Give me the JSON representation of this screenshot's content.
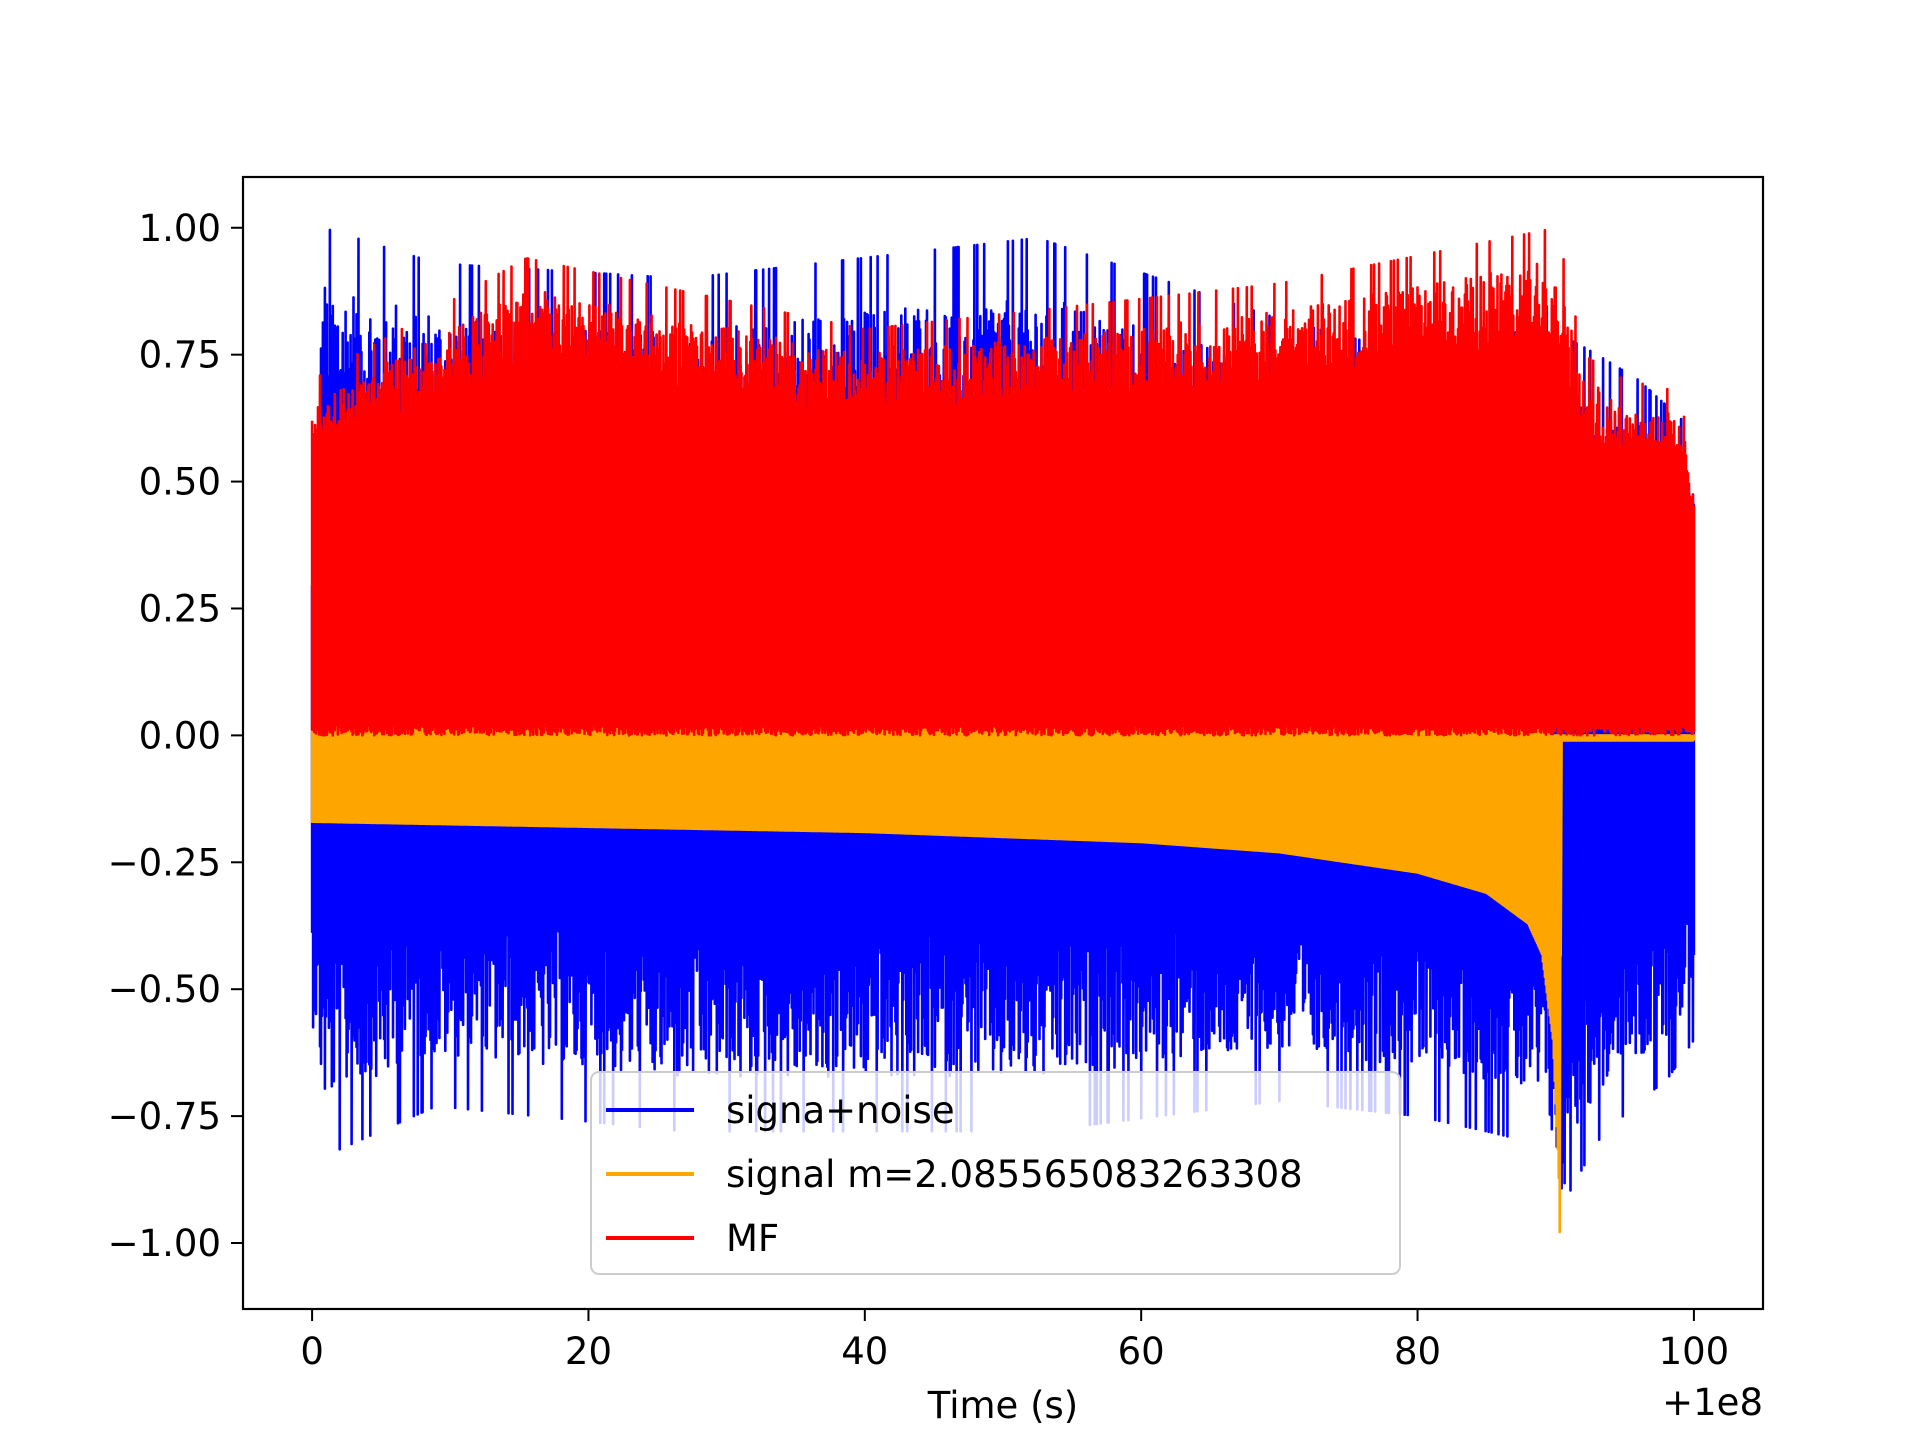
{
  "chart_data": {
    "type": "line",
    "title": "",
    "xlabel": "Time (s)",
    "ylabel": "",
    "x_offset_label": "+1e8",
    "xlim": [
      -5,
      105
    ],
    "ylim": [
      -1.13,
      1.1
    ],
    "x_ticks": [
      0,
      20,
      40,
      60,
      80,
      100
    ],
    "x_tick_labels": [
      "0",
      "20",
      "40",
      "60",
      "80",
      "100"
    ],
    "y_ticks": [
      1.0,
      0.75,
      0.5,
      0.25,
      0.0,
      -0.25,
      -0.5,
      -0.75,
      -1.0
    ],
    "y_tick_labels": [
      "1.00",
      "0.75",
      "0.50",
      "0.25",
      "0.00",
      "−0.25",
      "−0.50",
      "−0.75",
      "−1.00"
    ],
    "grid": false,
    "legend_position": "lower-center",
    "signal_merger_time": 90.3,
    "series": [
      {
        "name": "signa+noise",
        "color": "#0000ff",
        "envelope": {
          "x": [
            0,
            0.8,
            9,
            27,
            52.5,
            70,
            80,
            85,
            88,
            89.5,
            90.3,
            90.5,
            91,
            93,
            96,
            98,
            100
          ],
          "upper": [
            0.4,
            1.0,
            0.93,
            0.9,
            0.98,
            0.82,
            0.75,
            0.78,
            0.8,
            0.85,
            0.8,
            0.6,
            0.78,
            0.75,
            0.7,
            0.65,
            0.6
          ],
          "lower": [
            -0.55,
            -0.83,
            -0.73,
            -0.78,
            -0.78,
            -0.72,
            -0.75,
            -0.78,
            -0.8,
            -0.85,
            -1.0,
            -1.03,
            -0.9,
            -0.8,
            -0.72,
            -0.68,
            -0.6
          ]
        }
      },
      {
        "name": "signal m=2.085565083263308",
        "color": "#ffa500",
        "envelope": {
          "x": [
            0,
            20,
            40,
            60,
            70,
            80,
            85,
            88,
            89,
            89.8,
            90.2,
            90.3,
            90.4,
            100
          ],
          "upper": [
            0.02,
            0.02,
            0.02,
            0.02,
            0.02,
            0.02,
            0.02,
            0.02,
            0.02,
            0.0,
            0.0,
            0.0,
            0.0,
            0.0
          ],
          "lower": [
            -0.17,
            -0.18,
            -0.19,
            -0.21,
            -0.23,
            -0.27,
            -0.31,
            -0.37,
            -0.43,
            -0.6,
            -0.85,
            -1.0,
            -0.01,
            -0.01
          ]
        }
      },
      {
        "name": "MF",
        "color": "#ff0000",
        "envelope": {
          "x": [
            0,
            15.5,
            40,
            70,
            90.1,
            92,
            95,
            98.5,
            100
          ],
          "upper": [
            0.7,
            0.94,
            0.8,
            0.89,
            1.0,
            0.75,
            0.7,
            0.68,
            0.58
          ],
          "lower": [
            0.0,
            0.0,
            0.0,
            0.0,
            0.0,
            0.0,
            0.0,
            0.0,
            0.0
          ]
        }
      }
    ]
  }
}
